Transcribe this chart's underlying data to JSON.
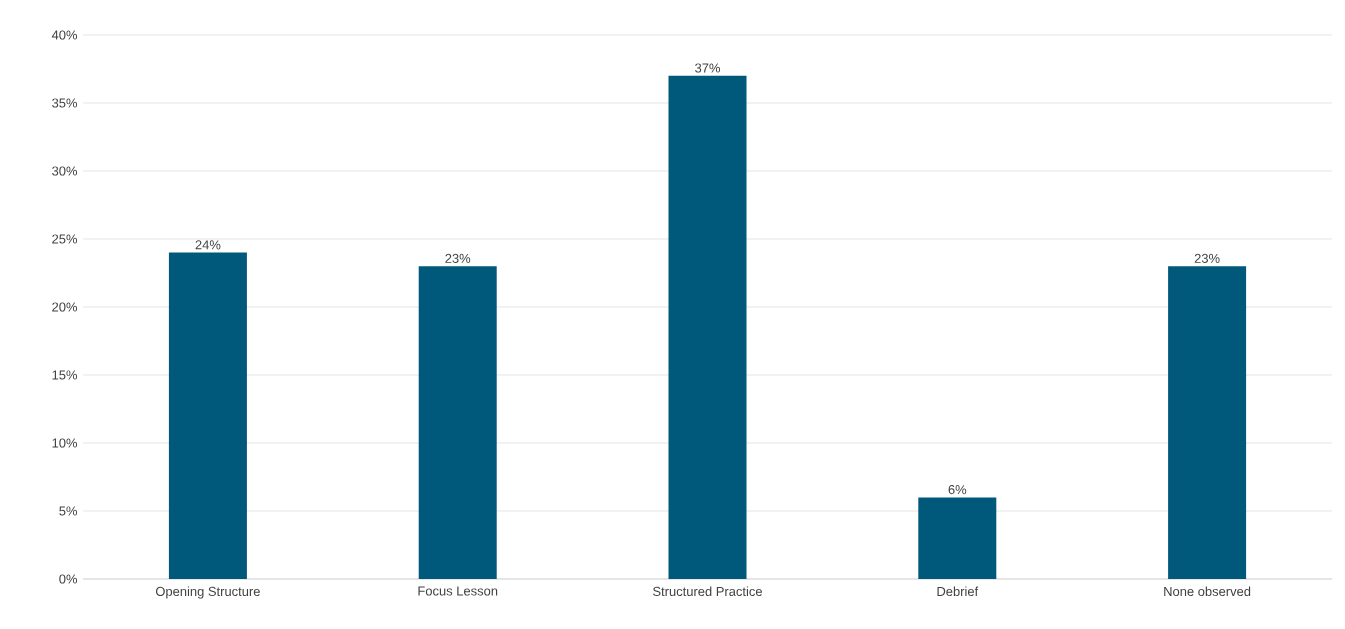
{
  "chart_data": {
    "type": "bar",
    "categories": [
      "Opening Structure",
      "Focus Lesson",
      "Structured Practice",
      "Debrief",
      "None observed"
    ],
    "values": [
      24,
      23,
      37,
      6,
      23
    ],
    "value_labels": [
      "24%",
      "23%",
      "37%",
      "6%",
      "23%"
    ],
    "color": "#00587a",
    "ylim": [
      0,
      40
    ],
    "yticks": [
      {
        "value": 0,
        "label": "0%"
      },
      {
        "value": 5,
        "label": "5%"
      },
      {
        "value": 10,
        "label": "10%"
      },
      {
        "value": 15,
        "label": "15%"
      },
      {
        "value": 20,
        "label": "20%"
      },
      {
        "value": 25,
        "label": "25%"
      },
      {
        "value": 30,
        "label": "30%"
      },
      {
        "value": 35,
        "label": "35%"
      },
      {
        "value": 40,
        "label": "40%"
      }
    ],
    "grid": "y"
  }
}
